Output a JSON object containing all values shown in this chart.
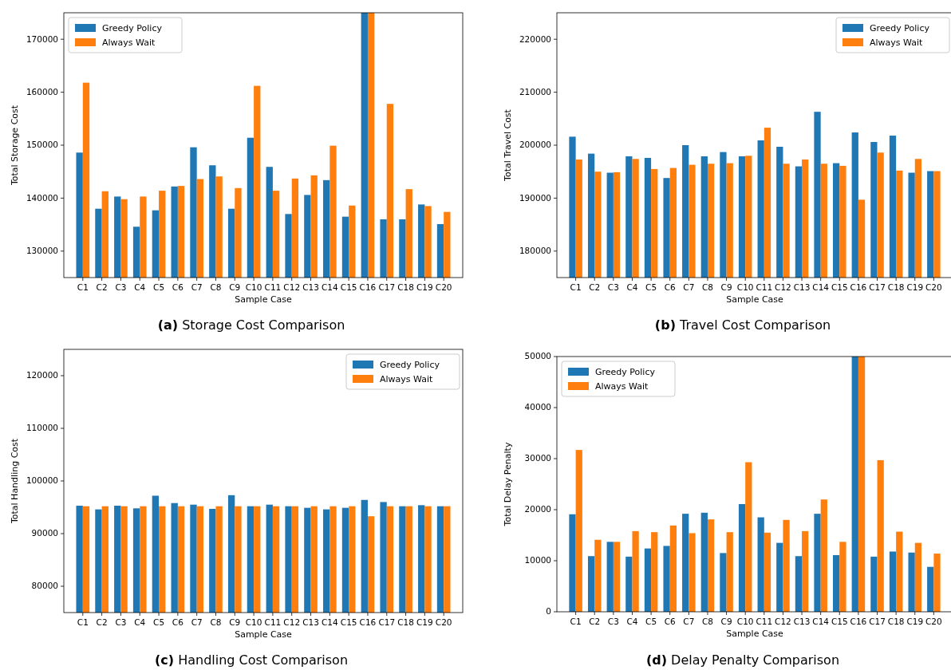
{
  "chart_data": [
    {
      "type": "bar",
      "title": "(a) Storage Cost Comparison",
      "xlabel": "Sample Case",
      "ylabel": "Total Storage Cost",
      "categories": [
        "C1",
        "C2",
        "C3",
        "C4",
        "C5",
        "C6",
        "C7",
        "C8",
        "C9",
        "C10",
        "C11",
        "C12",
        "C13",
        "C14",
        "C15",
        "C16",
        "C17",
        "C18",
        "C19",
        "C20"
      ],
      "ylim": [
        125000,
        175000
      ],
      "yticks": [
        130000,
        140000,
        150000,
        160000,
        170000
      ],
      "legend": "top left",
      "series": [
        {
          "name": "Greedy Policy",
          "color": "#1f77b4",
          "values": [
            148600,
            138000,
            140300,
            134600,
            137700,
            142200,
            149600,
            146200,
            138000,
            151400,
            145900,
            137000,
            140600,
            143400,
            136500,
            175000,
            136000,
            136000,
            138800,
            135100
          ]
        },
        {
          "name": "Always Wait",
          "color": "#ff7f0e",
          "values": [
            161800,
            141300,
            139800,
            140300,
            141400,
            142300,
            143600,
            144100,
            141900,
            161200,
            141400,
            143700,
            144300,
            149900,
            138600,
            175000,
            157800,
            141700,
            138500,
            137400
          ]
        }
      ]
    },
    {
      "type": "bar",
      "title": "(b) Travel Cost Comparison",
      "xlabel": "Sample Case",
      "ylabel": "Total Travel Cost",
      "categories": [
        "C1",
        "C2",
        "C3",
        "C4",
        "C5",
        "C6",
        "C7",
        "C8",
        "C9",
        "C10",
        "C11",
        "C12",
        "C13",
        "C14",
        "C15",
        "C16",
        "C17",
        "C18",
        "C19",
        "C20"
      ],
      "ylim": [
        175000,
        225000
      ],
      "yticks": [
        180000,
        190000,
        200000,
        210000,
        220000
      ],
      "legend": "top right",
      "series": [
        {
          "name": "Greedy Policy",
          "color": "#1f77b4",
          "values": [
            201600,
            198400,
            194800,
            197900,
            197600,
            193800,
            200000,
            197900,
            198700,
            197900,
            200900,
            199700,
            196000,
            206300,
            196600,
            202400,
            200600,
            201800,
            194800,
            195100
          ]
        },
        {
          "name": "Always Wait",
          "color": "#ff7f0e",
          "values": [
            197300,
            195000,
            194900,
            197400,
            195500,
            195700,
            196300,
            196500,
            196600,
            198000,
            203300,
            196500,
            197300,
            196500,
            196100,
            189700,
            198600,
            195200,
            197400,
            195100
          ]
        }
      ]
    },
    {
      "type": "bar",
      "title": "(c) Handling Cost Comparison",
      "xlabel": "Sample Case",
      "ylabel": "Total Handling Cost",
      "categories": [
        "C1",
        "C2",
        "C3",
        "C4",
        "C5",
        "C6",
        "C7",
        "C8",
        "C9",
        "C10",
        "C11",
        "C12",
        "C13",
        "C14",
        "C15",
        "C16",
        "C17",
        "C18",
        "C19",
        "C20"
      ],
      "ylim": [
        75000,
        125000
      ],
      "yticks": [
        80000,
        90000,
        100000,
        110000,
        120000
      ],
      "legend": "top right",
      "series": [
        {
          "name": "Greedy Policy",
          "color": "#1f77b4",
          "values": [
            95300,
            94600,
            95300,
            94800,
            97200,
            95800,
            95500,
            94700,
            97300,
            95200,
            95500,
            95200,
            94900,
            94600,
            94900,
            96400,
            96000,
            95200,
            95400,
            95200
          ]
        },
        {
          "name": "Always Wait",
          "color": "#ff7f0e",
          "values": [
            95200,
            95200,
            95200,
            95200,
            95200,
            95200,
            95200,
            95200,
            95200,
            95200,
            95200,
            95200,
            95200,
            95200,
            95200,
            93300,
            95200,
            95200,
            95200,
            95200
          ]
        }
      ]
    },
    {
      "type": "bar",
      "title": "(d) Delay Penalty Comparison",
      "xlabel": "Sample Case",
      "ylabel": "Total Delay Penalty",
      "categories": [
        "C1",
        "C2",
        "C3",
        "C4",
        "C5",
        "C6",
        "C7",
        "C8",
        "C9",
        "C10",
        "C11",
        "C12",
        "C13",
        "C14",
        "C15",
        "C16",
        "C17",
        "C18",
        "C19",
        "C20"
      ],
      "ylim": [
        0,
        50000
      ],
      "yticks": [
        0,
        10000,
        20000,
        30000,
        40000,
        50000
      ],
      "legend": "top left",
      "series": [
        {
          "name": "Greedy Policy",
          "color": "#1f77b4",
          "values": [
            19100,
            10900,
            13700,
            10800,
            12400,
            12900,
            19200,
            19400,
            11500,
            21100,
            18500,
            13500,
            10900,
            19200,
            11100,
            50000,
            10800,
            11800,
            11600,
            8800
          ]
        },
        {
          "name": "Always Wait",
          "color": "#ff7f0e",
          "values": [
            31700,
            14100,
            13700,
            15800,
            15600,
            16900,
            15400,
            18100,
            15600,
            29300,
            15500,
            18000,
            15800,
            22000,
            13700,
            50000,
            29700,
            15700,
            13500,
            11400
          ]
        }
      ]
    }
  ]
}
